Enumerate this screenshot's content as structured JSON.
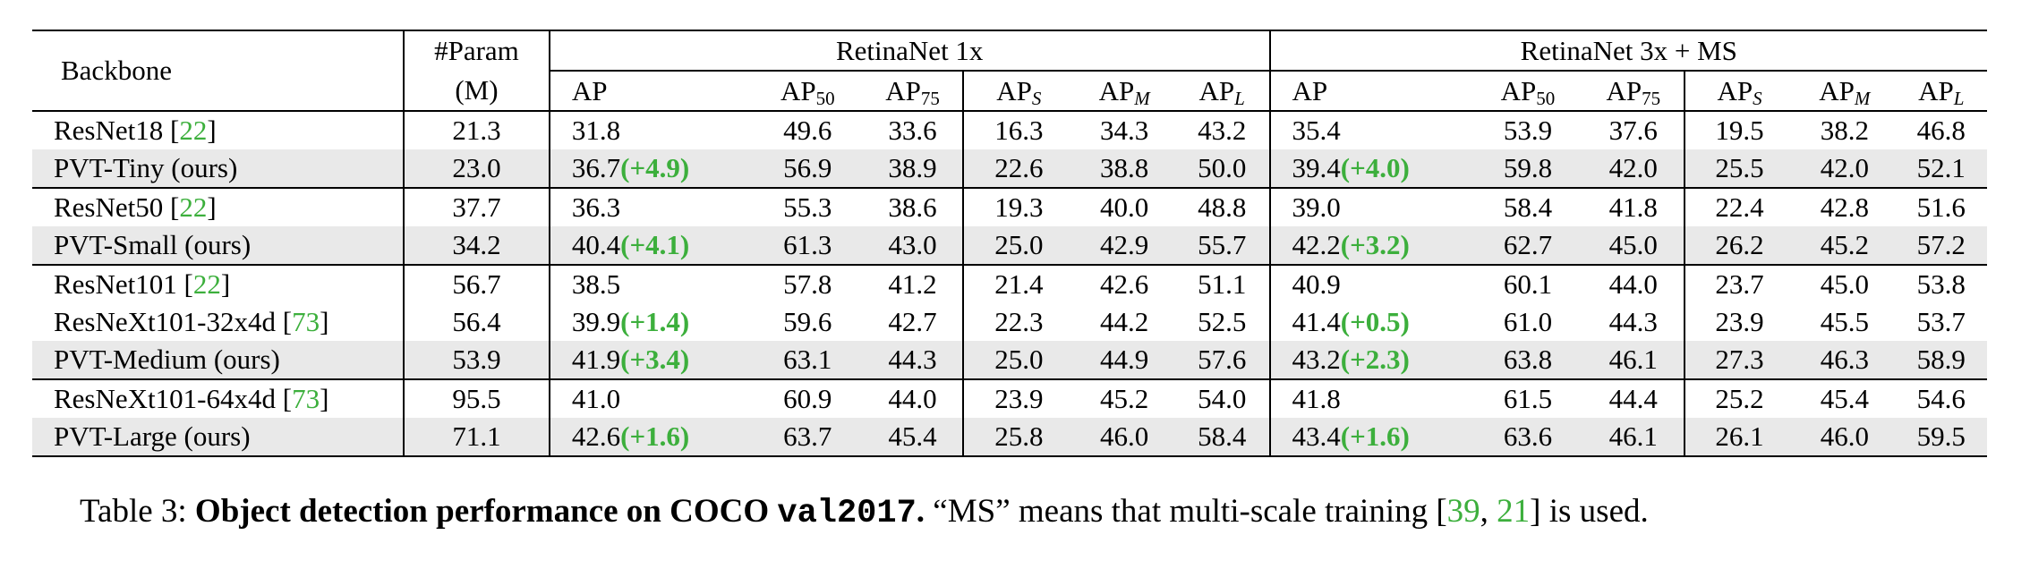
{
  "header": {
    "backbone": "Backbone",
    "param_top": "#Param",
    "param_bottom": "(M)",
    "group1": "RetinaNet 1x",
    "group2": "RetinaNet 3x + MS",
    "metric_ap": "AP",
    "sub_50": "50",
    "sub_75": "75",
    "sub_s": "S",
    "sub_m": "M",
    "sub_l": "L"
  },
  "rows": [
    {
      "name": "ResNet18 ",
      "ref": "22",
      "ref_close": "]",
      "params": "21.3",
      "g1": {
        "ap": "31.8",
        "gain": "",
        "ap50": "49.6",
        "ap75": "33.6",
        "aps": "16.3",
        "apm": "34.3",
        "apl": "43.2"
      },
      "g2": {
        "ap": "35.4",
        "gain": "",
        "ap50": "53.9",
        "ap75": "37.6",
        "aps": "19.5",
        "apm": "38.2",
        "apl": "46.8"
      }
    },
    {
      "name": "PVT-Tiny (ours)",
      "ref": "",
      "ref_close": "",
      "params": "23.0",
      "g1": {
        "ap": "36.7",
        "gain": "(+4.9)",
        "ap50": "56.9",
        "ap75": "38.9",
        "aps": "22.6",
        "apm": "38.8",
        "apl": "50.0"
      },
      "g2": {
        "ap": "39.4",
        "gain": "(+4.0)",
        "ap50": "59.8",
        "ap75": "42.0",
        "aps": "25.5",
        "apm": "42.0",
        "apl": "52.1"
      }
    },
    {
      "name": "ResNet50 ",
      "ref": "22",
      "ref_close": "]",
      "params": "37.7",
      "g1": {
        "ap": "36.3",
        "gain": "",
        "ap50": "55.3",
        "ap75": "38.6",
        "aps": "19.3",
        "apm": "40.0",
        "apl": "48.8"
      },
      "g2": {
        "ap": "39.0",
        "gain": "",
        "ap50": "58.4",
        "ap75": "41.8",
        "aps": "22.4",
        "apm": "42.8",
        "apl": "51.6"
      }
    },
    {
      "name": "PVT-Small (ours)",
      "ref": "",
      "ref_close": "",
      "params": "34.2",
      "g1": {
        "ap": "40.4",
        "gain": "(+4.1)",
        "ap50": "61.3",
        "ap75": "43.0",
        "aps": "25.0",
        "apm": "42.9",
        "apl": "55.7"
      },
      "g2": {
        "ap": "42.2",
        "gain": "(+3.2)",
        "ap50": "62.7",
        "ap75": "45.0",
        "aps": "26.2",
        "apm": "45.2",
        "apl": "57.2"
      }
    },
    {
      "name": "ResNet101 ",
      "ref": "22",
      "ref_close": "]",
      "params": "56.7",
      "g1": {
        "ap": "38.5",
        "gain": "",
        "ap50": "57.8",
        "ap75": "41.2",
        "aps": "21.4",
        "apm": "42.6",
        "apl": "51.1"
      },
      "g2": {
        "ap": "40.9",
        "gain": "",
        "ap50": "60.1",
        "ap75": "44.0",
        "aps": "23.7",
        "apm": "45.0",
        "apl": "53.8"
      }
    },
    {
      "name": "ResNeXt101-32x4d ",
      "ref": "73",
      "ref_close": "]",
      "params": "56.4",
      "g1": {
        "ap": "39.9",
        "gain": "(+1.4)",
        "ap50": "59.6",
        "ap75": "42.7",
        "aps": "22.3",
        "apm": "44.2",
        "apl": "52.5"
      },
      "g2": {
        "ap": "41.4",
        "gain": "(+0.5)",
        "ap50": "61.0",
        "ap75": "44.3",
        "aps": "23.9",
        "apm": "45.5",
        "apl": "53.7"
      }
    },
    {
      "name": "PVT-Medium (ours)",
      "ref": "",
      "ref_close": "",
      "params": "53.9",
      "g1": {
        "ap": "41.9",
        "gain": "(+3.4)",
        "ap50": "63.1",
        "ap75": "44.3",
        "aps": "25.0",
        "apm": "44.9",
        "apl": "57.6"
      },
      "g2": {
        "ap": "43.2",
        "gain": "(+2.3)",
        "ap50": "63.8",
        "ap75": "46.1",
        "aps": "27.3",
        "apm": "46.3",
        "apl": "58.9"
      }
    },
    {
      "name": "ResNeXt101-64x4d ",
      "ref": "73",
      "ref_close": "]",
      "params": "95.5",
      "g1": {
        "ap": "41.0",
        "gain": "",
        "ap50": "60.9",
        "ap75": "44.0",
        "aps": "23.9",
        "apm": "45.2",
        "apl": "54.0"
      },
      "g2": {
        "ap": "41.8",
        "gain": "",
        "ap50": "61.5",
        "ap75": "44.4",
        "aps": "25.2",
        "apm": "45.4",
        "apl": "54.6"
      }
    },
    {
      "name": "PVT-Large (ours)",
      "ref": "",
      "ref_close": "",
      "params": "71.1",
      "g1": {
        "ap": "42.6",
        "gain": "(+1.6)",
        "ap50": "63.7",
        "ap75": "45.4",
        "aps": "25.8",
        "apm": "46.0",
        "apl": "58.4"
      },
      "g2": {
        "ap": "43.4",
        "gain": "(+1.6)",
        "ap50": "63.6",
        "ap75": "46.1",
        "aps": "26.1",
        "apm": "46.0",
        "apl": "59.5"
      }
    }
  ],
  "caption": {
    "prefix": "Table 3: ",
    "bold": "Object detection performance on COCO ",
    "code": "val2017",
    "bold_end": ".",
    "text1": " “MS” means that multi-scale training [",
    "ref1": "39",
    "sep": ", ",
    "ref2": "21",
    "text2": "] is used."
  },
  "colors": {
    "highlight_green": "#3caf3c",
    "row_shade": "#e9e9e9"
  }
}
